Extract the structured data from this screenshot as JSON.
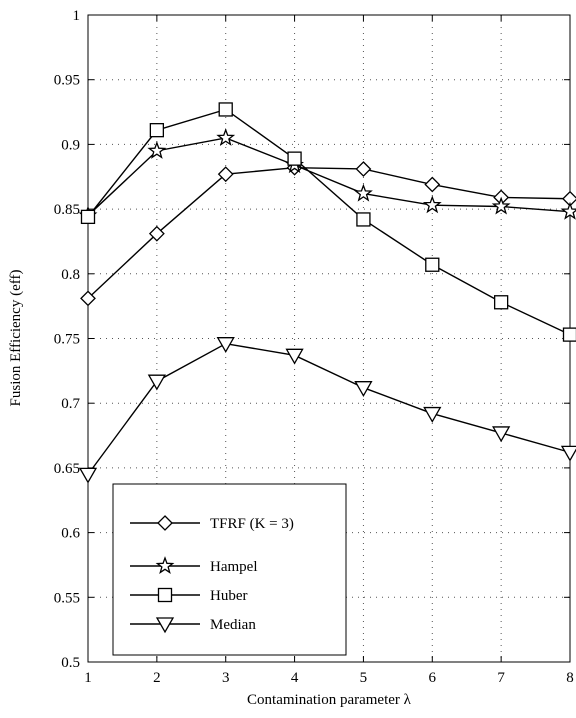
{
  "chart_data": {
    "type": "line",
    "title": "",
    "xlabel": "Contamination parameter λ",
    "ylabel": "Fusion Efficiency (eff)",
    "xlim": [
      1,
      8
    ],
    "ylim": [
      0.5,
      1
    ],
    "grid": true,
    "legend_position": "bottom-left",
    "x": [
      1,
      2,
      3,
      4,
      5,
      6,
      7,
      8
    ],
    "xticks": [
      "1",
      "2",
      "3",
      "4",
      "5",
      "6",
      "7",
      "8"
    ],
    "yticks": [
      "0.5",
      "0.55",
      "0.6",
      "0.65",
      "0.7",
      "0.75",
      "0.8",
      "0.85",
      "0.9",
      "0.95",
      "1"
    ],
    "series": [
      {
        "name": "TFRF (K = 3)",
        "marker": "diamond",
        "values": [
          0.781,
          0.831,
          0.877,
          0.882,
          0.881,
          0.869,
          0.859,
          0.858
        ]
      },
      {
        "name": "Hampel",
        "marker": "star",
        "values": [
          0.845,
          0.895,
          0.905,
          0.884,
          0.862,
          0.853,
          0.852,
          0.848
        ]
      },
      {
        "name": "Huber",
        "marker": "square",
        "values": [
          0.844,
          0.911,
          0.927,
          0.889,
          0.842,
          0.807,
          0.778,
          0.753
        ]
      },
      {
        "name": "Median",
        "marker": "triangle-down",
        "values": [
          0.645,
          0.717,
          0.746,
          0.737,
          0.712,
          0.692,
          0.677,
          0.662
        ]
      }
    ]
  }
}
